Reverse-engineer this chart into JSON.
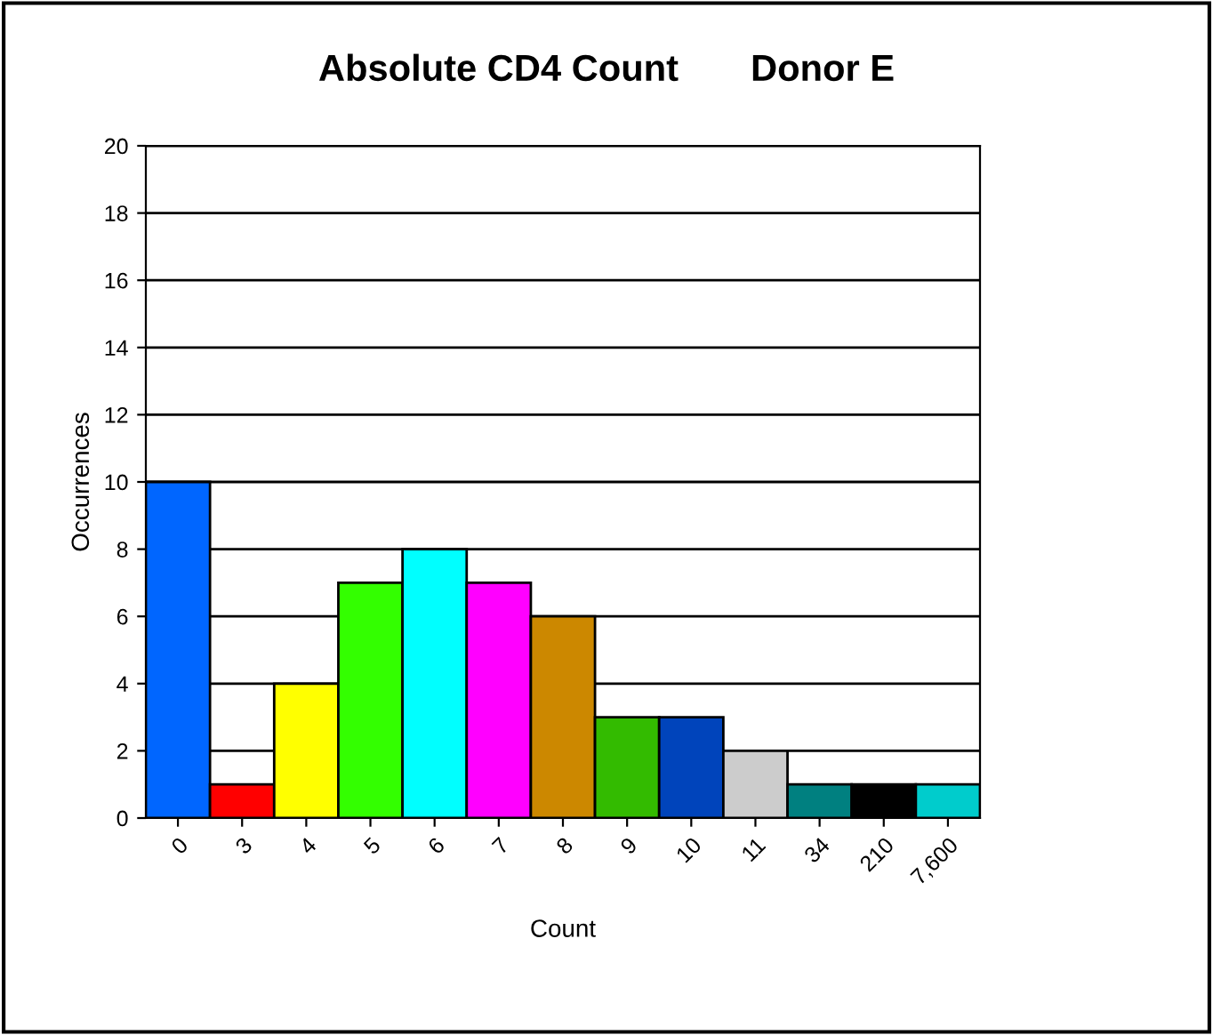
{
  "chart_data": {
    "type": "bar",
    "title": "Absolute CD4 Count       Donor E",
    "xlabel": "Count",
    "ylabel": "Occurrences",
    "categories": [
      "0",
      "3",
      "4",
      "5",
      "6",
      "7",
      "8",
      "9",
      "10",
      "11",
      "34",
      "210",
      "7,600"
    ],
    "values": [
      10,
      1,
      4,
      7,
      8,
      7,
      6,
      3,
      3,
      2,
      1,
      1,
      1
    ],
    "colors": [
      "#0066ff",
      "#ff0000",
      "#ffff00",
      "#33ff00",
      "#00ffff",
      "#ff00ff",
      "#cc8800",
      "#33bb00",
      "#0044bb",
      "#cccccc",
      "#008080",
      "#000000",
      "#00cccc"
    ],
    "ylim": [
      0,
      20
    ],
    "yticks": [
      0,
      2,
      4,
      6,
      8,
      10,
      12,
      14,
      16,
      18,
      20
    ],
    "grid": "y"
  }
}
